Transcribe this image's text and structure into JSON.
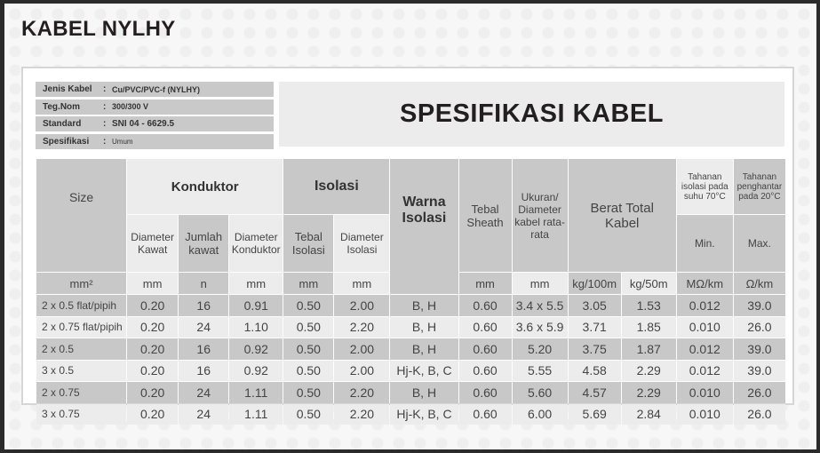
{
  "title": "KABEL NYLHY",
  "heading": "SPESIFIKASI KABEL",
  "info": [
    {
      "label": "Jenis Kabel",
      "value": "Cu/PVC/PVC-f (NYLHY)"
    },
    {
      "label": "Teg.Nom",
      "value": "300/300 V"
    },
    {
      "label": "Standard",
      "value": "SNI 04 - 6629.5"
    },
    {
      "label": "Spesifikasi",
      "value": "Umum"
    }
  ],
  "separator": ":",
  "headers": {
    "size": "Size",
    "konduktor": "Konduktor",
    "isolasi": "Isolasi",
    "diameter_kawat": "Diameter Kawat",
    "jumlah_kawat": "Jumlah kawat",
    "diameter_konduktor": "Diameter Konduktor",
    "tebal_isolasi": "Tebal Isolasi",
    "diameter_isolasi": "Diameter Isolasi",
    "warna_isolasi": "Warna Isolasi",
    "tebal_sheath": "Tebal Sheath",
    "ukuran": "Ukuran/ Diameter kabel rata-rata",
    "berat": "Berat Total Kabel",
    "tahanan_isolasi": "Tahanan isolasi pada suhu 70°C",
    "tahanan_penghantar": "Tahanan penghantar pada 20°C",
    "min": "Min.",
    "max": "Max."
  },
  "units": [
    "mm²",
    "mm",
    "n",
    "mm",
    "mm",
    "mm",
    "mm",
    "mm",
    "kg/100m",
    "kg/50m",
    "MΩ/km",
    "Ω/km"
  ],
  "rows": [
    [
      "2 x 0.5 flat/pipih",
      "0.20",
      "16",
      "0.91",
      "0.50",
      "2.00",
      "B, H",
      "0.60",
      "3.4 x 5.5",
      "3.05",
      "1.53",
      "0.012",
      "39.0"
    ],
    [
      "2 x 0.75 flat/pipih",
      "0.20",
      "24",
      "1.10",
      "0.50",
      "2.20",
      "B, H",
      "0.60",
      "3.6 x 5.9",
      "3.71",
      "1.85",
      "0.010",
      "26.0"
    ],
    [
      "2 x 0.5",
      "0.20",
      "16",
      "0.92",
      "0.50",
      "2.00",
      "B, H",
      "0.60",
      "5.20",
      "3.75",
      "1.87",
      "0.012",
      "39.0"
    ],
    [
      "3 x 0.5",
      "0.20",
      "16",
      "0.92",
      "0.50",
      "2.00",
      "Hj-K, B, C",
      "0.60",
      "5.55",
      "4.58",
      "2.29",
      "0.012",
      "39.0"
    ],
    [
      "2 x 0.75",
      "0.20",
      "24",
      "1.11",
      "0.50",
      "2.20",
      "B, H",
      "0.60",
      "5.60",
      "4.57",
      "2.29",
      "0.010",
      "26.0"
    ],
    [
      "3 x 0.75",
      "0.20",
      "24",
      "1.11",
      "0.50",
      "2.20",
      "Hj-K, B, C",
      "0.60",
      "6.00",
      "5.69",
      "2.84",
      "0.010",
      "26.0"
    ]
  ]
}
